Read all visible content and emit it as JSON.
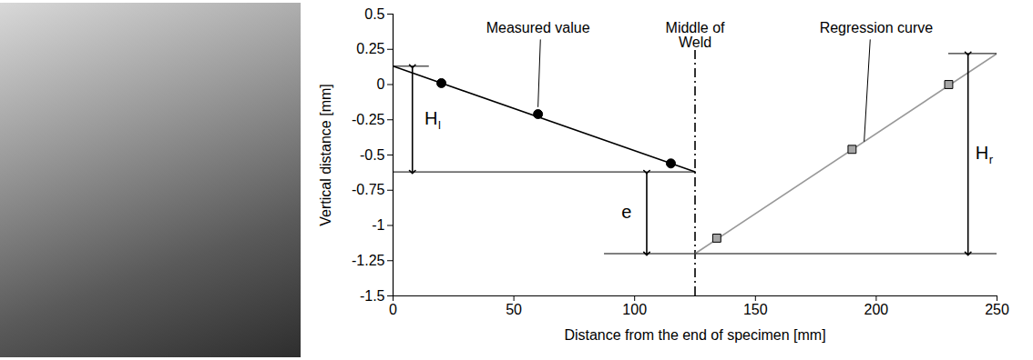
{
  "chart_data": {
    "type": "scatter",
    "x_label": "Distance from the end of specimen [mm]",
    "y_label": "Vertical distance [mm]",
    "xlim": [
      0,
      250
    ],
    "xticks": [
      0,
      50,
      100,
      150,
      200,
      250
    ],
    "ylim": [
      -1.5,
      0.5
    ],
    "yticks": [
      0.5,
      0.25,
      0,
      -0.25,
      -0.5,
      -0.75,
      -1,
      -1.25,
      -1.5
    ],
    "grid": false,
    "middle_of_weld": 125,
    "series": [
      {
        "type": "scatter",
        "marker": "circle",
        "color": "#000000",
        "x": [
          20,
          60,
          115
        ],
        "values": [
          0.01,
          -0.21,
          -0.56
        ]
      },
      {
        "type": "scatter",
        "marker": "square",
        "color": "#a6a6a6",
        "x": [
          134,
          190,
          230
        ],
        "values": [
          -1.09,
          -0.46,
          0.0
        ]
      },
      {
        "type": "line",
        "line_style": "solid",
        "color": "#000000",
        "x": [
          0,
          125
        ],
        "values": [
          0.13,
          -0.62
        ]
      },
      {
        "type": "line",
        "line_style": "solid",
        "color": "#999999",
        "x": [
          125,
          250
        ],
        "values": [
          -1.2,
          0.22
        ]
      }
    ],
    "annotations": {
      "measured_value": "Measured value",
      "middle_of_weld": "Middle of Weld",
      "regression_curve": "Regression curve",
      "H_l": [
        "H",
        "l"
      ],
      "H_r": [
        "H",
        "r"
      ],
      "e": "e"
    }
  }
}
